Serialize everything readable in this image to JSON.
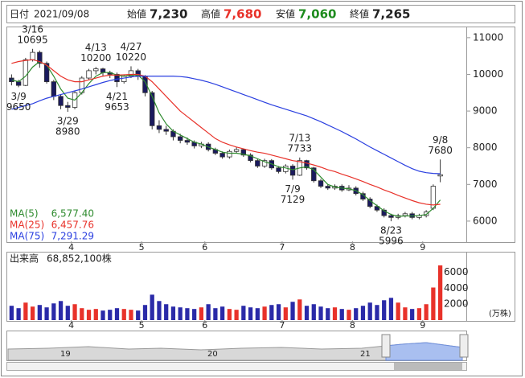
{
  "header": {
    "date_label": "日付",
    "date": "2021/09/08",
    "open_label": "始値",
    "open": "7,230",
    "high_label": "高値",
    "high": "7,680",
    "low_label": "安値",
    "low": "7,060",
    "close_label": "終値",
    "close": "7,265"
  },
  "chart_data": {
    "type": "candlestick",
    "categories": [
      null,
      null,
      null,
      null,
      null,
      null,
      null,
      null,
      null,
      "4",
      null,
      null,
      null,
      null,
      null,
      null,
      null,
      null,
      null,
      "5",
      null,
      null,
      null,
      null,
      null,
      null,
      null,
      null,
      "6",
      null,
      null,
      null,
      null,
      null,
      null,
      null,
      null,
      null,
      null,
      "7",
      null,
      null,
      null,
      null,
      null,
      null,
      null,
      null,
      null,
      "8",
      null,
      null,
      null,
      null,
      null,
      null,
      null,
      null,
      null,
      "9",
      null,
      null
    ],
    "open": [
      9900,
      9800,
      9700,
      10400,
      10600,
      10300,
      9800,
      9400,
      9150,
      9100,
      9500,
      9900,
      10100,
      10150,
      10050,
      10000,
      9800,
      9950,
      10100,
      9950,
      9500,
      8600,
      8500,
      8450,
      8300,
      8200,
      8150,
      8050,
      8100,
      7950,
      7850,
      7750,
      7900,
      7950,
      7800,
      7650,
      7500,
      7650,
      7450,
      7350,
      7500,
      7250,
      7650,
      7450,
      7100,
      6950,
      6900,
      6950,
      6850,
      6900,
      6750,
      6600,
      6400,
      6300,
      6150,
      6100,
      6150,
      6200,
      6100,
      6150,
      6350,
      7230
    ],
    "high": [
      10000,
      9850,
      10450,
      10695,
      10650,
      10350,
      9850,
      9450,
      9250,
      9550,
      9950,
      10150,
      10200,
      10180,
      10100,
      10050,
      10000,
      10220,
      10150,
      9980,
      9550,
      8750,
      8600,
      8500,
      8380,
      8280,
      8200,
      8160,
      8150,
      8000,
      7900,
      7950,
      8020,
      7980,
      7850,
      7700,
      7700,
      7690,
      7500,
      7550,
      7550,
      7733,
      7670,
      7480,
      7150,
      7000,
      7000,
      7000,
      6980,
      6950,
      6800,
      6650,
      6450,
      6350,
      6200,
      6200,
      6250,
      6250,
      6200,
      6300,
      7000,
      7680
    ],
    "low": [
      9700,
      9650,
      9680,
      10350,
      10180,
      9750,
      9300,
      9050,
      8980,
      9050,
      9450,
      9850,
      10000,
      9950,
      9900,
      9653,
      9750,
      9900,
      9850,
      9400,
      8500,
      8400,
      8350,
      8200,
      8120,
      8080,
      7980,
      7990,
      7900,
      7800,
      7700,
      7700,
      7850,
      7750,
      7600,
      7450,
      7450,
      7400,
      7300,
      7300,
      7129,
      7230,
      7400,
      7050,
      6900,
      6850,
      6850,
      6800,
      6820,
      6700,
      6550,
      6350,
      6250,
      6100,
      5996,
      6050,
      6100,
      6050,
      6050,
      6100,
      6300,
      7060
    ],
    "close": [
      9800,
      9700,
      10400,
      10600,
      10300,
      9800,
      9400,
      9150,
      9100,
      9500,
      9900,
      10100,
      10150,
      10050,
      10000,
      9800,
      9950,
      10100,
      9950,
      9500,
      8600,
      8500,
      8450,
      8300,
      8200,
      8150,
      8050,
      8100,
      7950,
      7850,
      7750,
      7900,
      7950,
      7800,
      7650,
      7500,
      7650,
      7450,
      7350,
      7500,
      7250,
      7650,
      7450,
      7100,
      6950,
      6900,
      6950,
      6850,
      6900,
      6750,
      6600,
      6400,
      6300,
      6150,
      6100,
      6150,
      6200,
      6100,
      6150,
      6250,
      6950,
      7265
    ],
    "up_color": "#ffffff",
    "down_color": "#1a1a5e",
    "candle_edge": "#333333",
    "series": [
      {
        "name": "MA(5)",
        "value_label": "6,577.40",
        "color": "#2e8b2e",
        "values": [
          9850,
          9800,
          9950,
          10200,
          10350,
          10250,
          9950,
          9600,
          9350,
          9300,
          9500,
          9750,
          9950,
          10050,
          10050,
          9980,
          9950,
          9980,
          9980,
          9800,
          9400,
          8950,
          8650,
          8450,
          8350,
          8250,
          8150,
          8100,
          8020,
          7950,
          7880,
          7850,
          7850,
          7820,
          7780,
          7700,
          7620,
          7560,
          7480,
          7450,
          7400,
          7450,
          7480,
          7400,
          7200,
          7000,
          6930,
          6900,
          6880,
          6830,
          6720,
          6560,
          6420,
          6280,
          6180,
          6130,
          6140,
          6140,
          6150,
          6180,
          6350,
          6577
        ]
      },
      {
        "name": "MA(25)",
        "value_label": "6,457.76",
        "color": "#e8322a",
        "values": [
          10300,
          10350,
          10380,
          10400,
          10350,
          10250,
          10100,
          9950,
          9850,
          9800,
          9800,
          9850,
          9900,
          9950,
          9980,
          9980,
          9990,
          10000,
          10000,
          9950,
          9800,
          9600,
          9400,
          9200,
          9000,
          8850,
          8700,
          8550,
          8400,
          8250,
          8150,
          8080,
          8020,
          7970,
          7920,
          7880,
          7850,
          7800,
          7750,
          7700,
          7650,
          7620,
          7580,
          7530,
          7470,
          7400,
          7350,
          7280,
          7220,
          7150,
          7080,
          7000,
          6930,
          6850,
          6780,
          6700,
          6630,
          6560,
          6500,
          6460,
          6440,
          6458
        ]
      },
      {
        "name": "MA(75)",
        "value_label": "7,291.29",
        "color": "#2a3fe0",
        "values": [
          9050,
          9100,
          9150,
          9200,
          9280,
          9350,
          9400,
          9450,
          9500,
          9550,
          9600,
          9660,
          9720,
          9780,
          9830,
          9870,
          9900,
          9930,
          9950,
          9950,
          9950,
          9950,
          9950,
          9950,
          9940,
          9920,
          9880,
          9840,
          9790,
          9730,
          9660,
          9590,
          9520,
          9450,
          9380,
          9310,
          9240,
          9170,
          9110,
          9050,
          8990,
          8930,
          8870,
          8790,
          8710,
          8620,
          8530,
          8440,
          8340,
          8240,
          8130,
          8020,
          7920,
          7820,
          7720,
          7620,
          7520,
          7430,
          7360,
          7320,
          7300,
          7291
        ]
      }
    ],
    "ylim": [
      5450,
      11260
    ],
    "yticks": [
      6000,
      7000,
      8000,
      9000,
      10000,
      11000
    ],
    "annotations": [
      {
        "date": "3/16",
        "value": 10695
      },
      {
        "date": "3/9",
        "value": 9650
      },
      {
        "date": "3/29",
        "value": 8980
      },
      {
        "date": "4/13",
        "value": 10200
      },
      {
        "date": "4/21",
        "value": 9653
      },
      {
        "date": "4/27",
        "value": 10220
      },
      {
        "date": "7/13",
        "value": 7733
      },
      {
        "date": "7/9",
        "value": 7129
      },
      {
        "date": "8/23",
        "value": 5996
      },
      {
        "date": "9/8",
        "value": 7680
      }
    ],
    "volume": {
      "label": "出来高",
      "total": "68,852,100株",
      "unit": "(万株)",
      "up_color": "#e8322a",
      "down_color": "#2a2aa8",
      "values": [
        1800,
        1500,
        2200,
        1700,
        1900,
        1600,
        2100,
        2400,
        1800,
        2000,
        1500,
        1300,
        1400,
        1200,
        1300,
        1500,
        1400,
        1300,
        1200,
        1900,
        3200,
        2400,
        2000,
        1700,
        1600,
        1500,
        1400,
        1600,
        2000,
        1500,
        1700,
        1400,
        1300,
        1800,
        1600,
        1500,
        1700,
        1900,
        2000,
        1600,
        2300,
        2600,
        1800,
        2000,
        1700,
        1500,
        1600,
        1400,
        1300,
        1500,
        1800,
        2200,
        1900,
        2500,
        2800,
        2200,
        1600,
        1400,
        1500,
        2000,
        4100,
        6885
      ],
      "ylim": [
        0,
        8300
      ],
      "yticks": [
        2000,
        4000,
        6000
      ]
    }
  },
  "navigator": {
    "labels": [
      "19",
      "20",
      "21"
    ]
  }
}
